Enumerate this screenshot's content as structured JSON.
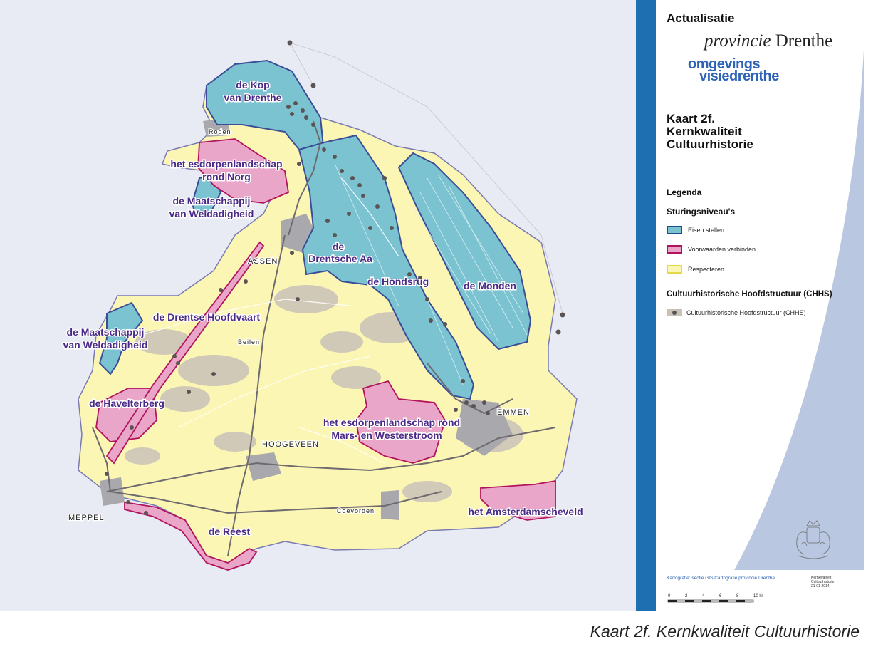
{
  "map": {
    "region_labels": [
      "de Kop\nvan Drenthe",
      "het esdorpenlandschap\nrond Norg",
      "de Maatschappij\nvan Weldadigheid",
      "de\nDrentsche Aa",
      "de Hondsrug",
      "de Monden",
      "de Drentse Hoofdvaart",
      "de Maatschappij\nvan Weldadigheid",
      "de Havelterberg",
      "het esdorpenlandschap rond\nMars- en Westerstroom",
      "het Amsterdamscheveld",
      "de Reest"
    ],
    "towns": [
      "Roden",
      "ASSEN",
      "Beilen",
      "HOOGEVEEN",
      "EMMEN",
      "MEPPEL",
      "Coevorden"
    ],
    "colors": {
      "background": "#e8ebf3",
      "respecteren": "#fbf6b4",
      "eisen_stellen": "#7cc3d1",
      "voorwaarden_verbinden": "#e9a6c8",
      "outline": "#6c6aa4",
      "label": "#4a2a86",
      "chhs": "#c9c1b6"
    }
  },
  "panel": {
    "heading": "Actualisatie",
    "logo_provincie": "provincie",
    "logo_drenthe": "Drenthe",
    "logo_omgevings": "omgevings",
    "logo_visiedrenthe": "visiedrenthe",
    "map_title_1": "Kaart 2f.",
    "map_title_2": "Kernkwaliteit",
    "map_title_3": "Cultuurhistorie",
    "legend_heading": "Legenda",
    "sturing_heading": "Sturingsniveau's",
    "legend_items": [
      {
        "label": "Eisen stellen",
        "fill": "#7cc3d1",
        "border": "#1e4f8c"
      },
      {
        "label": "Voorwaarden verbinden",
        "fill": "#e9a6c8",
        "border": "#b2135f"
      },
      {
        "label": "Respecteren",
        "fill": "#fbf6b4",
        "border": "#e3d94a"
      }
    ],
    "chhs_heading": "Cultuurhistorische Hoofdstructuur (CHHS)",
    "chhs_item": "Cultuurhistorische Hoofdstructuur (CHHS)",
    "credit": "Kartografie: sectie GIS/Cartografie provincie Drenthe",
    "meta_1": "Kernkwaliteit",
    "meta_2": "Cultuurhistorie",
    "meta_3": "21-01-2014",
    "scale_ticks": [
      "0",
      "2",
      "4",
      "6",
      "8",
      "10 km"
    ]
  },
  "caption": "Kaart 2f. Kernkwaliteit Cultuurhistorie"
}
